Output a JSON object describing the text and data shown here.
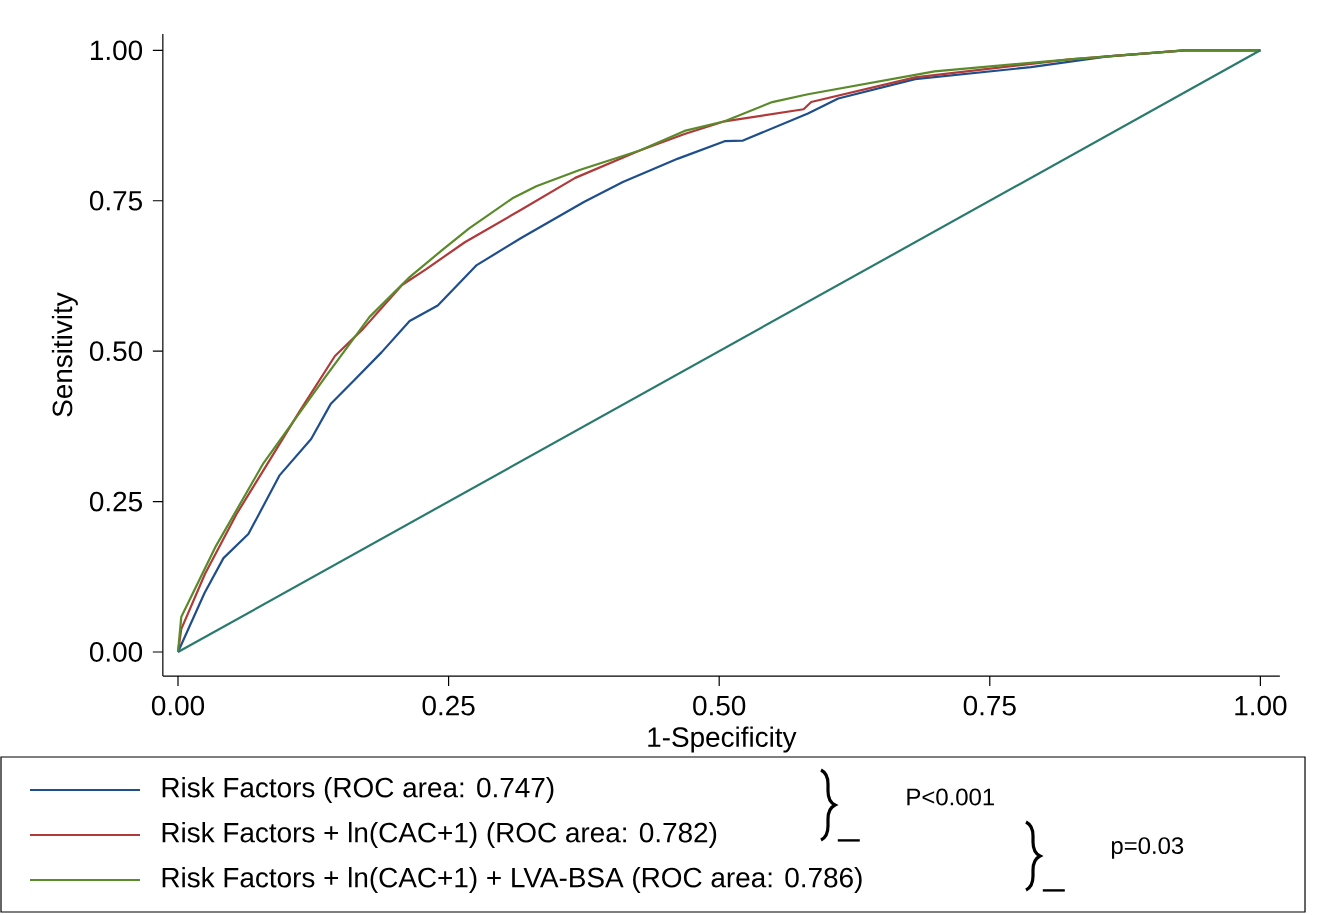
{
  "chart_data": {
    "type": "line",
    "xlabel": "1-Specificity",
    "ylabel": "Sensitivity",
    "xlim": [
      -0.014,
      1.018
    ],
    "ylim": [
      -0.04,
      1.027
    ],
    "xticks": [
      {
        "value": 0,
        "label": "0.00"
      },
      {
        "value": 0.25,
        "label": "0.25"
      },
      {
        "value": 0.5,
        "label": "0.50"
      },
      {
        "value": 0.75,
        "label": "0.75"
      },
      {
        "value": 1,
        "label": "1.00"
      }
    ],
    "yticks": [
      {
        "value": 0,
        "label": "0.00"
      },
      {
        "value": 0.25,
        "label": "0.25"
      },
      {
        "value": 0.5,
        "label": "0.50"
      },
      {
        "value": 0.75,
        "label": "0.75"
      },
      {
        "value": 1,
        "label": "1.00"
      }
    ],
    "legend": "bottom",
    "series": [
      {
        "name": "Risk Factors (ROC area: 0.747)",
        "color": "#1f4e8c",
        "x": [
          0,
          0.0245,
          0.042,
          0.065,
          0.094,
          0.123,
          0.141,
          0.163,
          0.188,
          0.214,
          0.24,
          0.276,
          0.317,
          0.375,
          0.411,
          0.462,
          0.505,
          0.522,
          0.582,
          0.61,
          0.681,
          0.788,
          0.859,
          0.93,
          1
        ],
        "values": [
          0,
          0.098,
          0.156,
          0.196,
          0.294,
          0.354,
          0.412,
          0.452,
          0.498,
          0.55,
          0.576,
          0.643,
          0.688,
          0.748,
          0.781,
          0.82,
          0.849,
          0.85,
          0.895,
          0.92,
          0.952,
          0.972,
          0.99,
          1,
          1
        ]
      },
      {
        "name": "Risk Factors + ln(CAC+1) (ROC area: 0.782)",
        "color": "#b03a3a",
        "x": [
          0,
          0.003,
          0.025,
          0.054,
          0.083,
          0.112,
          0.145,
          0.171,
          0.207,
          0.229,
          0.265,
          0.317,
          0.367,
          0.426,
          0.468,
          0.505,
          0.578,
          0.585,
          0.681,
          0.824,
          0.93,
          1
        ],
        "values": [
          0,
          0.038,
          0.13,
          0.229,
          0.314,
          0.399,
          0.492,
          0.537,
          0.61,
          0.636,
          0.681,
          0.735,
          0.788,
          0.833,
          0.861,
          0.882,
          0.902,
          0.914,
          0.955,
          0.985,
          1,
          1
        ]
      },
      {
        "name": "Risk Factors + ln(CAC+1) + LVA-BSA (ROC area: 0.786)",
        "color": "#5a8a2a",
        "x": [
          0,
          0.003,
          0.035,
          0.079,
          0.134,
          0.177,
          0.214,
          0.244,
          0.269,
          0.309,
          0.331,
          0.371,
          0.426,
          0.468,
          0.505,
          0.549,
          0.582,
          0.699,
          0.824,
          0.93,
          1
        ],
        "values": [
          0,
          0.058,
          0.176,
          0.314,
          0.452,
          0.557,
          0.623,
          0.668,
          0.704,
          0.754,
          0.774,
          0.801,
          0.833,
          0.866,
          0.882,
          0.914,
          0.927,
          0.965,
          0.985,
          1,
          1
        ]
      },
      {
        "color": "#2a7a6e",
        "x": [
          0,
          1
        ],
        "values": [
          0,
          1
        ]
      }
    ],
    "annotations": [
      "P<0.001",
      "p=0.03"
    ]
  }
}
